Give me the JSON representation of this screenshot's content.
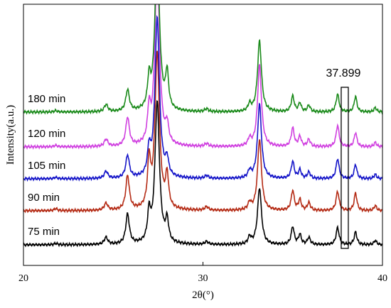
{
  "chart_data": {
    "type": "line",
    "title": "",
    "xlabel": "2θ(°)",
    "ylabel": "Intensity(a.u.)",
    "xlim": [
      20,
      40
    ],
    "x_ticks": [
      20,
      30,
      40
    ],
    "x_tick_labels": [
      "20",
      "30",
      "40"
    ],
    "y_ticks_shown": false,
    "grid": false,
    "legend": "none",
    "peak_positions": [
      21.8,
      24.6,
      25.8,
      27.0,
      27.45,
      28.0,
      30.2,
      32.6,
      33.15,
      35.0,
      35.4,
      35.9,
      37.5,
      37.9,
      38.5,
      39.6
    ],
    "series": [
      {
        "name": "75 min",
        "color": "#000000",
        "baseline": 0,
        "heights": [
          2,
          10,
          42,
          40,
          200,
          30,
          4,
          10,
          80,
          25,
          14,
          10,
          24,
          0,
          18,
          6
        ]
      },
      {
        "name": "90 min",
        "color": "#b42a14",
        "baseline": 48,
        "heights": [
          3,
          10,
          48,
          65,
          220,
          45,
          5,
          10,
          100,
          28,
          15,
          11,
          27,
          0,
          25,
          7
        ]
      },
      {
        "name": "105 min",
        "color": "#1414c8",
        "baseline": 93,
        "heights": [
          2,
          10,
          32,
          35,
          225,
          22,
          4,
          10,
          105,
          24,
          12,
          9,
          28,
          0,
          20,
          6
        ]
      },
      {
        "name": "120 min",
        "color": "#d040e0",
        "baseline": 138,
        "heights": [
          2,
          10,
          40,
          45,
          260,
          25,
          4,
          10,
          115,
          26,
          14,
          10,
          30,
          0,
          20,
          6
        ]
      },
      {
        "name": "180 min",
        "color": "#1a8a1a",
        "baseline": 187,
        "heights": [
          2,
          10,
          30,
          40,
          230,
          50,
          4,
          10,
          100,
          22,
          12,
          9,
          25,
          0,
          22,
          6
        ]
      }
    ],
    "annotations": [
      {
        "text": "37.899",
        "x": 37.899,
        "type": "rect-highlight"
      }
    ]
  }
}
